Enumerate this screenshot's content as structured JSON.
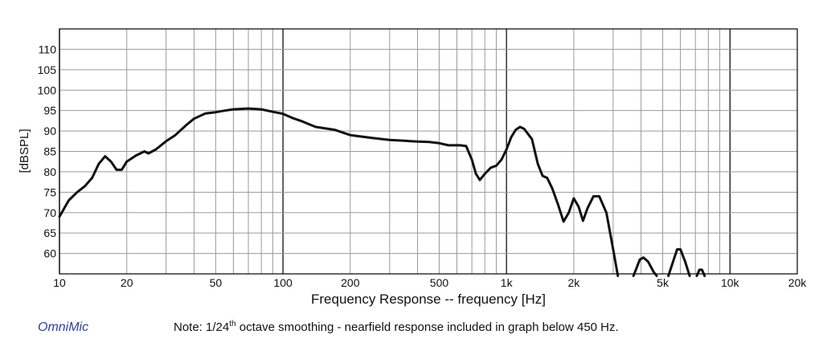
{
  "chart_data": {
    "type": "line",
    "title": "",
    "xlabel": "Frequency Response -- frequency [Hz]",
    "ylabel": "[dBSPL]",
    "x_scale": "log",
    "xlim": [
      10,
      20000
    ],
    "ylim": [
      55,
      115
    ],
    "grid": true,
    "legend": "none",
    "x_ticks": [
      {
        "value": 10,
        "label": "10"
      },
      {
        "value": 20,
        "label": "20"
      },
      {
        "value": 50,
        "label": "50"
      },
      {
        "value": 100,
        "label": "100"
      },
      {
        "value": 200,
        "label": "200"
      },
      {
        "value": 500,
        "label": "500"
      },
      {
        "value": 1000,
        "label": "1k"
      },
      {
        "value": 2000,
        "label": "2k"
      },
      {
        "value": 5000,
        "label": "5k"
      },
      {
        "value": 10000,
        "label": "10k"
      },
      {
        "value": 20000,
        "label": "20k"
      }
    ],
    "y_ticks": [
      60,
      65,
      70,
      75,
      80,
      85,
      90,
      95,
      100,
      105,
      110
    ],
    "line_color": "#111111",
    "series": [
      {
        "segments": [
          [
            [
              10,
              69
            ],
            [
              11,
              73
            ],
            [
              12,
              75
            ],
            [
              13,
              76.5
            ],
            [
              14,
              78.5
            ],
            [
              15,
              82
            ],
            [
              16,
              83.8
            ],
            [
              17,
              82.5
            ],
            [
              18,
              80.5
            ],
            [
              19,
              80.5
            ],
            [
              20,
              82.5
            ],
            [
              22,
              84
            ],
            [
              24,
              85
            ],
            [
              25,
              84.5
            ],
            [
              27,
              85.5
            ],
            [
              30,
              87.5
            ],
            [
              33,
              89
            ],
            [
              37,
              91.5
            ],
            [
              40,
              93
            ],
            [
              45,
              94.3
            ],
            [
              50,
              94.6
            ],
            [
              55,
              95
            ],
            [
              60,
              95.3
            ],
            [
              70,
              95.5
            ],
            [
              80,
              95.3
            ],
            [
              90,
              94.7
            ],
            [
              100,
              94.2
            ],
            [
              110,
              93.2
            ],
            [
              120,
              92.5
            ],
            [
              140,
              91
            ],
            [
              170,
              90.3
            ],
            [
              200,
              89
            ],
            [
              250,
              88.3
            ],
            [
              300,
              87.8
            ],
            [
              350,
              87.6
            ],
            [
              400,
              87.4
            ],
            [
              450,
              87.3
            ],
            [
              500,
              87
            ],
            [
              550,
              86.5
            ],
            [
              620,
              86.5
            ],
            [
              660,
              86.3
            ],
            [
              700,
              83
            ],
            [
              730,
              79.5
            ],
            [
              760,
              78
            ],
            [
              800,
              79.5
            ],
            [
              850,
              81
            ],
            [
              900,
              81.5
            ],
            [
              950,
              83
            ],
            [
              1000,
              85.5
            ],
            [
              1050,
              88.5
            ],
            [
              1100,
              90.3
            ],
            [
              1150,
              91
            ],
            [
              1200,
              90.5
            ],
            [
              1300,
              88
            ],
            [
              1380,
              82
            ],
            [
              1450,
              79
            ],
            [
              1520,
              78.5
            ],
            [
              1600,
              76
            ],
            [
              1700,
              72
            ],
            [
              1800,
              67.8
            ],
            [
              1900,
              70
            ],
            [
              2000,
              73.5
            ],
            [
              2100,
              71.5
            ],
            [
              2200,
              68
            ],
            [
              2300,
              71
            ],
            [
              2450,
              74
            ],
            [
              2600,
              74
            ],
            [
              2800,
              70
            ],
            [
              3000,
              61
            ],
            [
              3150,
              54.5
            ]
          ],
          [
            [
              3700,
              54.5
            ],
            [
              3950,
              58.5
            ],
            [
              4100,
              59
            ],
            [
              4300,
              58
            ],
            [
              4550,
              55.5
            ],
            [
              4700,
              54.5
            ]
          ],
          [
            [
              5300,
              54.5
            ],
            [
              5600,
              58.5
            ],
            [
              5800,
              61
            ],
            [
              6000,
              61
            ],
            [
              6300,
              58
            ],
            [
              6600,
              54.5
            ]
          ],
          [
            [
              7100,
              54.5
            ],
            [
              7300,
              56
            ],
            [
              7500,
              56
            ],
            [
              7700,
              54.5
            ]
          ]
        ]
      }
    ]
  },
  "footer": {
    "brand": "OmniMic",
    "note_prefix": "Note: 1/24",
    "note_sup": "th",
    "note_suffix": " octave smoothing - nearfield response included in graph below 450 Hz."
  }
}
